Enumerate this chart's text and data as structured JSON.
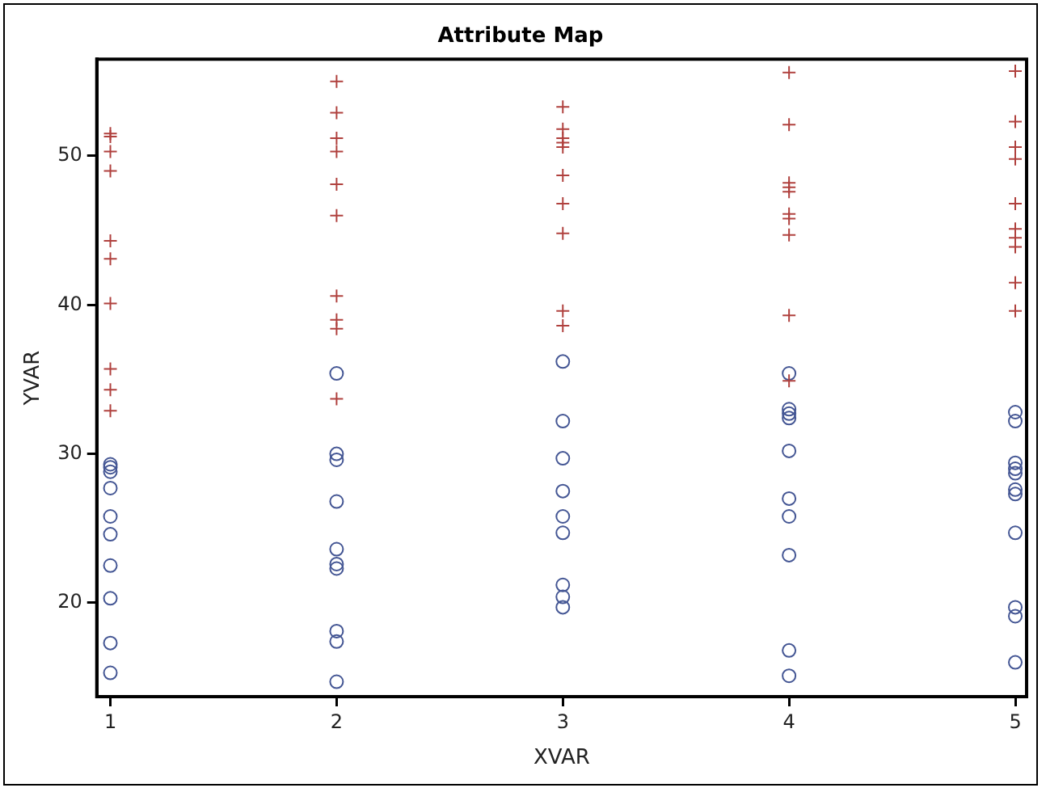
{
  "chart_data": {
    "type": "scatter",
    "title": "Attribute Map",
    "xlabel": "XVAR",
    "ylabel": "YVAR",
    "xlim": [
      0.94,
      5.05
    ],
    "xticks": [
      1,
      2,
      3,
      4,
      5
    ],
    "ylim": [
      13.7,
      56.5
    ],
    "yticks": [
      20,
      30,
      40,
      50
    ],
    "grid": false,
    "legend": false,
    "series": [
      {
        "color": "#b0413e",
        "marker": "cross",
        "x": [
          1,
          1,
          1,
          1,
          1,
          1,
          1,
          1,
          1,
          1,
          2,
          2,
          2,
          2,
          2,
          2,
          2,
          2,
          2,
          2,
          3,
          3,
          3,
          3,
          3,
          3,
          3,
          3,
          3,
          3,
          4,
          4,
          4,
          4,
          4,
          4,
          4,
          4,
          4,
          4,
          5,
          5,
          5,
          5,
          5,
          5,
          5,
          5,
          5,
          5
        ],
        "values": [
          51.5,
          51.3,
          50.3,
          49.0,
          44.3,
          43.1,
          40.1,
          35.7,
          34.3,
          32.9,
          55.0,
          52.9,
          51.2,
          50.3,
          48.1,
          46.0,
          40.6,
          39.0,
          38.4,
          33.7,
          53.3,
          51.8,
          51.2,
          50.9,
          50.6,
          48.7,
          46.8,
          44.8,
          39.6,
          38.6,
          55.6,
          52.1,
          48.2,
          47.9,
          47.6,
          46.1,
          45.8,
          44.7,
          39.3,
          34.9,
          55.7,
          52.3,
          50.6,
          49.8,
          46.8,
          45.1,
          44.5,
          43.9,
          41.5,
          39.6
        ]
      },
      {
        "color": "#445694",
        "marker": "circle",
        "x": [
          1,
          1,
          1,
          1,
          1,
          1,
          1,
          1,
          1,
          1,
          2,
          2,
          2,
          2,
          2,
          2,
          2,
          2,
          2,
          2,
          3,
          3,
          3,
          3,
          3,
          3,
          3,
          3,
          3,
          4,
          4,
          4,
          4,
          4,
          4,
          4,
          4,
          4,
          4,
          5,
          5,
          5,
          5,
          5,
          5,
          5,
          5,
          5,
          5,
          5
        ],
        "values": [
          29.3,
          29.1,
          28.8,
          27.7,
          25.8,
          24.6,
          22.5,
          20.3,
          17.3,
          15.3,
          35.4,
          30.0,
          29.6,
          26.8,
          23.6,
          22.6,
          22.3,
          18.1,
          17.4,
          14.7,
          36.2,
          32.2,
          29.7,
          27.5,
          25.8,
          24.7,
          21.2,
          20.4,
          19.7,
          35.4,
          33.0,
          32.7,
          32.4,
          30.2,
          27.0,
          25.8,
          23.2,
          16.8,
          15.1,
          32.8,
          32.2,
          29.4,
          29.0,
          28.7,
          27.6,
          27.3,
          24.7,
          19.7,
          19.1,
          16.0
        ]
      }
    ]
  }
}
